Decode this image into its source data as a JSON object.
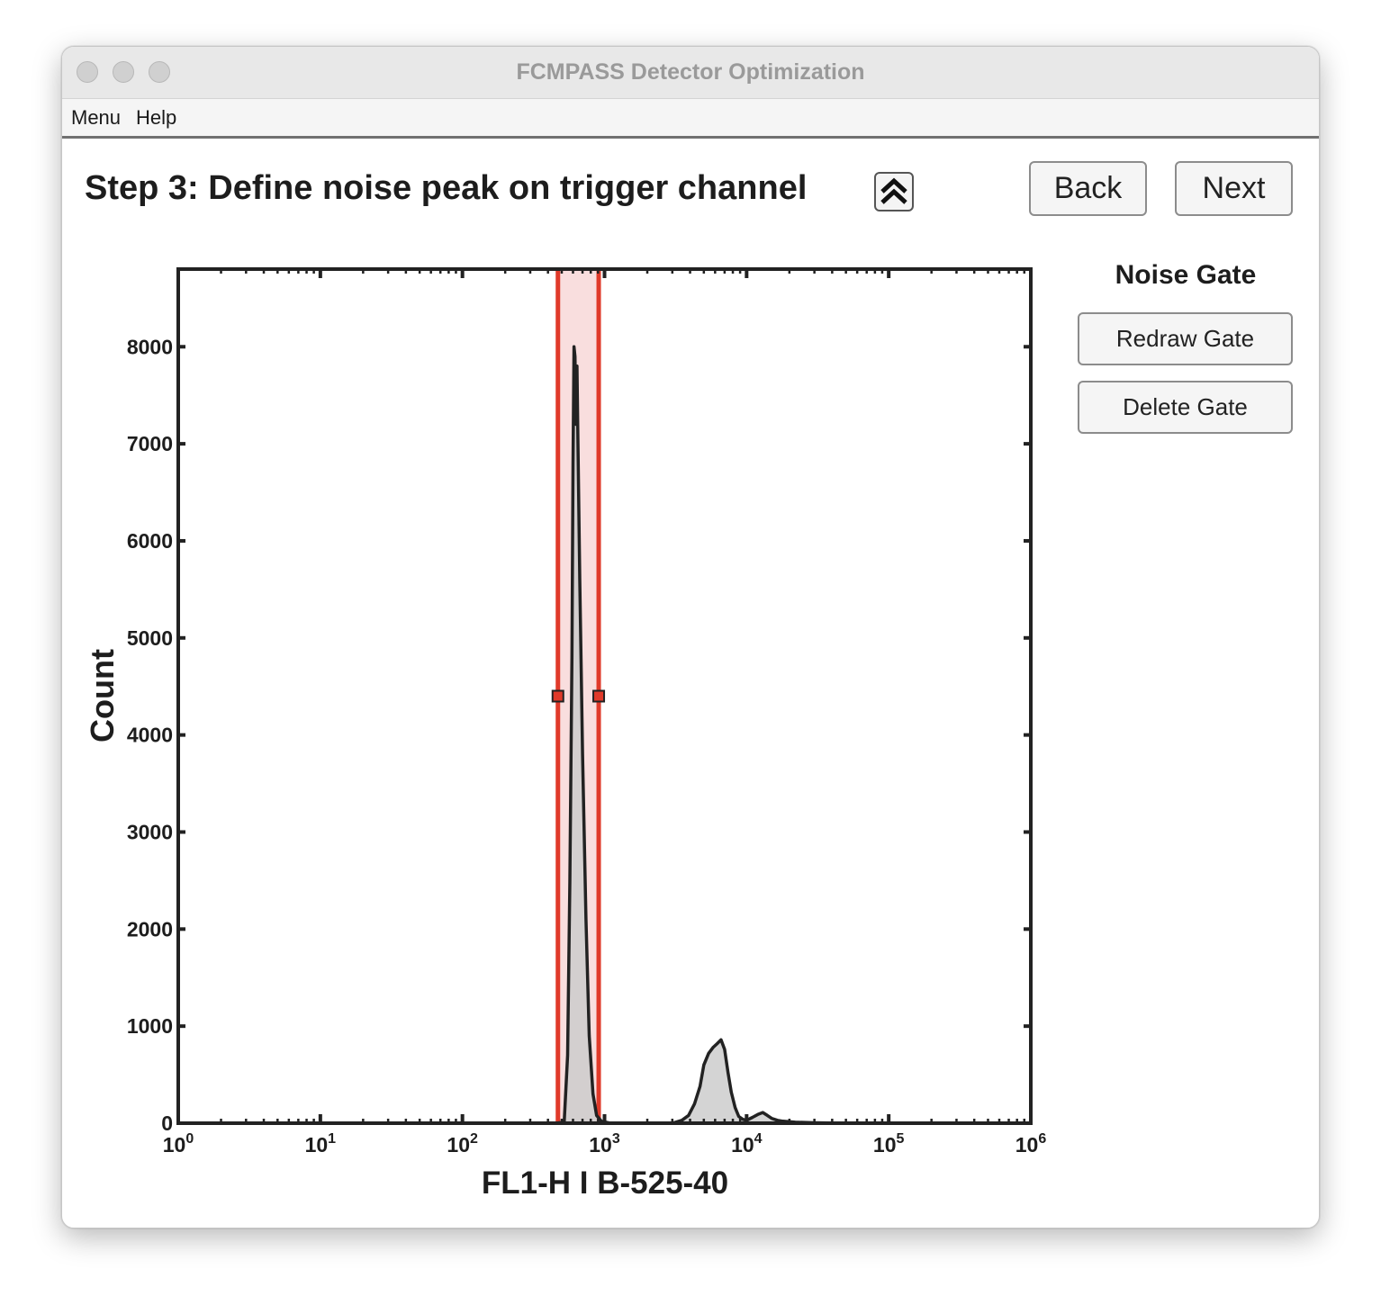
{
  "window": {
    "title": "FCMPASS Detector Optimization"
  },
  "menu": {
    "items": [
      "Menu",
      "Help"
    ]
  },
  "step": {
    "title": "Step 3: Define noise peak on trigger channel",
    "collapse_icon": "double-chevron-up-icon"
  },
  "nav": {
    "back_label": "Back",
    "next_label": "Next"
  },
  "gate_panel": {
    "title": "Noise Gate",
    "redraw_label": "Redraw Gate",
    "delete_label": "Delete Gate"
  },
  "colors": {
    "gate_line": "#e03a2a",
    "gate_fill": "#f9dede",
    "histogram_fill": "#cccccc",
    "histogram_stroke": "#222222"
  },
  "chart_data": {
    "type": "area",
    "xlabel": "FL1-H I B-525-40",
    "ylabel": "Count",
    "x_scale": "log",
    "xlim": [
      1,
      1000000
    ],
    "ylim": [
      0,
      8800
    ],
    "x_ticks": [
      {
        "value": 1,
        "base": "10",
        "exp": "0"
      },
      {
        "value": 10,
        "base": "10",
        "exp": "1"
      },
      {
        "value": 100,
        "base": "10",
        "exp": "2"
      },
      {
        "value": 1000,
        "base": "10",
        "exp": "3"
      },
      {
        "value": 10000,
        "base": "10",
        "exp": "4"
      },
      {
        "value": 100000,
        "base": "10",
        "exp": "5"
      },
      {
        "value": 1000000,
        "base": "10",
        "exp": "6"
      }
    ],
    "y_ticks": [
      0,
      1000,
      2000,
      3000,
      4000,
      5000,
      6000,
      7000,
      8000
    ],
    "series": [
      {
        "x": [
          450,
          520,
          550,
          570,
          590,
          600,
          610,
          620,
          630,
          640,
          650,
          670,
          700,
          740,
          780,
          830,
          880,
          950,
          1100,
          2000,
          3000,
          3500,
          3900,
          4300,
          4700,
          5000,
          5400,
          5800,
          6200,
          6600,
          7000,
          7400,
          7800,
          8300,
          8800,
          9400,
          10000,
          11000,
          12000,
          13000,
          14000,
          15000,
          16500,
          18000,
          22000,
          30000,
          50000,
          100000,
          300000,
          1000000
        ],
        "values": [
          0,
          10,
          700,
          2500,
          4800,
          6800,
          8000,
          7900,
          7200,
          7800,
          7000,
          5600,
          3800,
          2100,
          900,
          300,
          80,
          20,
          0,
          0,
          0,
          30,
          80,
          200,
          380,
          600,
          720,
          780,
          820,
          860,
          760,
          520,
          320,
          160,
          70,
          40,
          30,
          60,
          90,
          110,
          80,
          50,
          30,
          20,
          10,
          5,
          0,
          0,
          0,
          0
        ]
      }
    ],
    "gate": {
      "x_min": 470,
      "x_max": 910,
      "handle_y": 4400
    }
  }
}
